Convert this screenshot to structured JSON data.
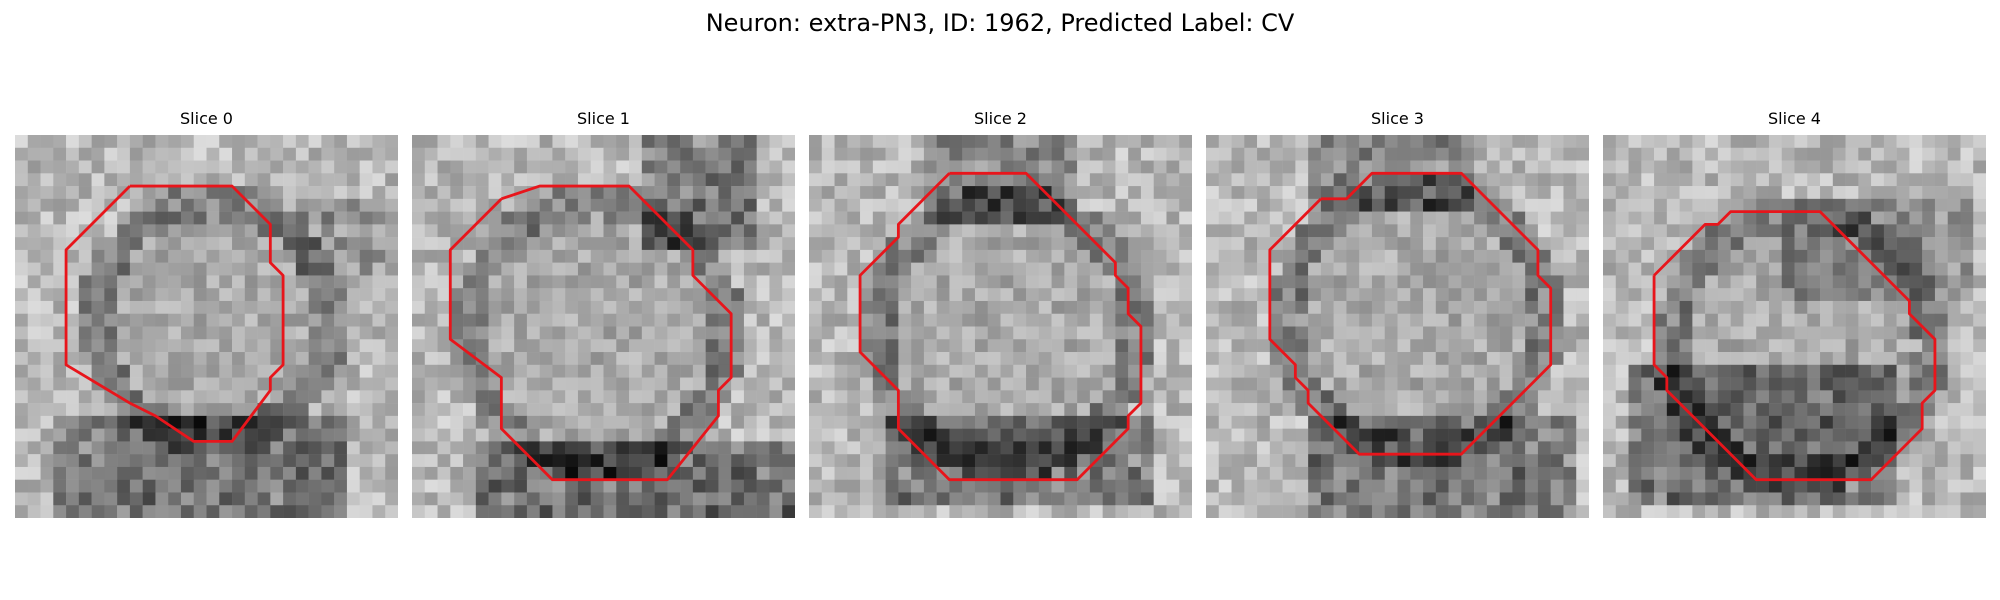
{
  "figure": {
    "title": "Neuron: extra-PN3, ID: 1962, Predicted Label: CV",
    "contour_color": "#e8151b"
  },
  "panels": [
    {
      "title": "Slice 0"
    },
    {
      "title": "Slice 1"
    },
    {
      "title": "Slice 2"
    },
    {
      "title": "Slice 3"
    },
    {
      "title": "Slice 4"
    }
  ]
}
